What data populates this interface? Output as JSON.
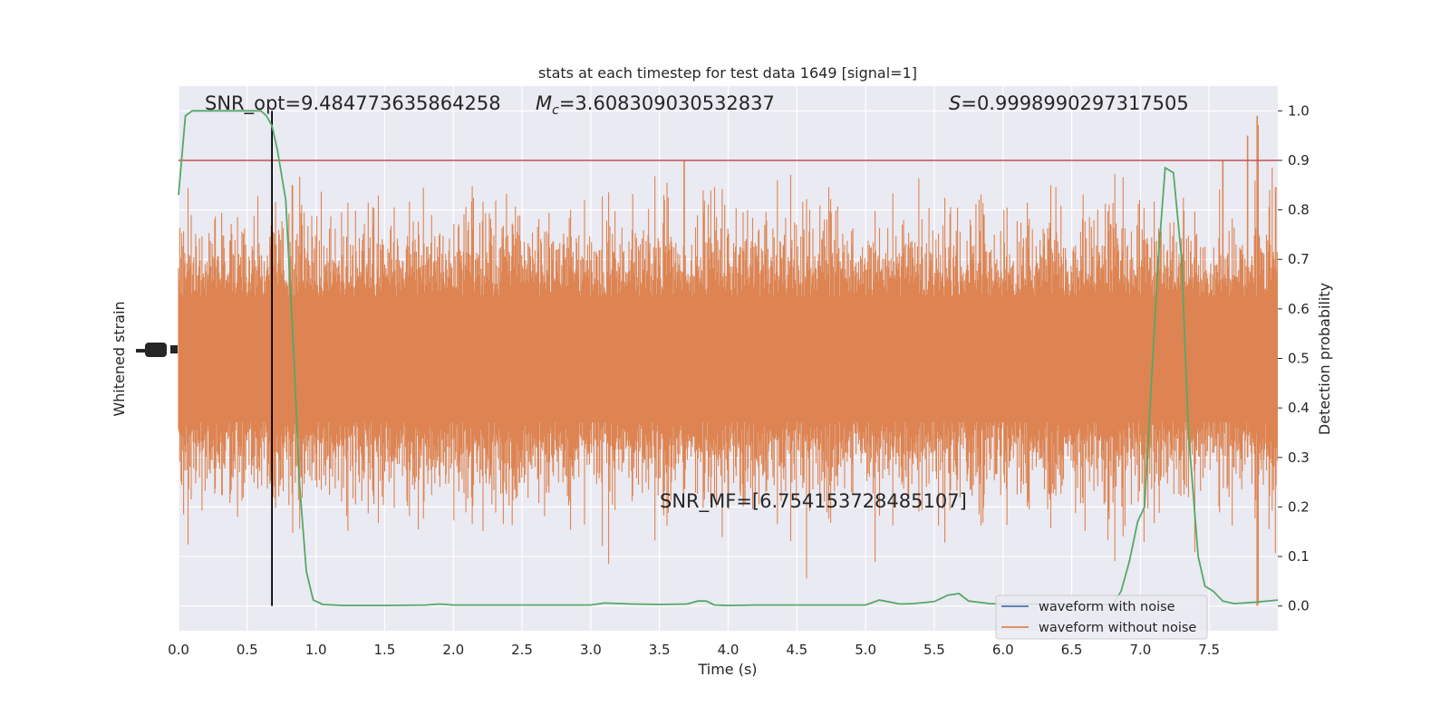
{
  "chart_data": {
    "type": "line",
    "title": "stats at each timestep for test data 1649 [signal=1]",
    "xlabel": "Time (s)",
    "ylabel_left": "Whitened strain",
    "ylabel_right": "Detection probability",
    "xlim": [
      0.0,
      8.0
    ],
    "ylim_right": [
      -0.05,
      1.05
    ],
    "x_ticks": [
      "0.0",
      "0.5",
      "1.0",
      "1.5",
      "2.0",
      "2.5",
      "3.0",
      "3.5",
      "4.0",
      "4.5",
      "5.0",
      "5.5",
      "6.0",
      "6.5",
      "7.0",
      "7.5"
    ],
    "x_tick_values": [
      0.0,
      0.5,
      1.0,
      1.5,
      2.0,
      2.5,
      3.0,
      3.5,
      4.0,
      4.5,
      5.0,
      5.5,
      6.0,
      6.5,
      7.0,
      7.5
    ],
    "y_ticks_right": [
      "0.0",
      "0.1",
      "0.2",
      "0.3",
      "0.4",
      "0.5",
      "0.6",
      "0.7",
      "0.8",
      "0.9",
      "1.0"
    ],
    "y_tick_values_right": [
      0.0,
      0.1,
      0.2,
      0.3,
      0.4,
      0.5,
      0.6,
      0.7,
      0.8,
      0.9,
      1.0
    ],
    "grid": true,
    "legend_position": "bottom-right",
    "annotations": {
      "snr_opt": "SNR_opt=9.484773635864258",
      "mc_symbol": "M",
      "mc_sub": "c",
      "mc_value": "=3.608309030532837",
      "s_symbol": "S",
      "s_value": "=0.9998990297317505",
      "snr_mf": "SNR_MF=[6.754153728485107]"
    },
    "threshold": 0.9,
    "vertical_marker_x": 0.68,
    "series": [
      {
        "name": "waveform with noise",
        "color": "#4c72b0",
        "kind": "strain",
        "values": []
      },
      {
        "name": "waveform without noise",
        "color": "#dd8452",
        "kind": "strain-noise",
        "values": []
      },
      {
        "color": "#55a868",
        "kind": "probability",
        "x": [
          0.0,
          0.05,
          0.1,
          0.15,
          0.2,
          0.3,
          0.4,
          0.5,
          0.6,
          0.64,
          0.68,
          0.72,
          0.78,
          0.84,
          0.88,
          0.93,
          0.98,
          1.05,
          1.2,
          1.5,
          1.8,
          1.9,
          2.0,
          2.3,
          2.6,
          3.0,
          3.1,
          3.3,
          3.5,
          3.7,
          3.78,
          3.84,
          3.9,
          4.0,
          4.2,
          4.5,
          4.8,
          5.0,
          5.1,
          5.25,
          5.35,
          5.5,
          5.6,
          5.68,
          5.75,
          5.9,
          6.0,
          6.3,
          6.6,
          6.8,
          6.86,
          6.92,
          6.98,
          7.03,
          7.08,
          7.13,
          7.18,
          7.24,
          7.3,
          7.35,
          7.42,
          7.47,
          7.53,
          7.6,
          7.68,
          7.75,
          7.85,
          8.0
        ],
        "values": [
          0.83,
          0.99,
          1.0,
          1.0,
          1.0,
          1.0,
          1.0,
          1.0,
          1.0,
          0.99,
          0.97,
          0.92,
          0.82,
          0.5,
          0.25,
          0.07,
          0.012,
          0.003,
          0.001,
          0.001,
          0.002,
          0.004,
          0.002,
          0.002,
          0.002,
          0.002,
          0.006,
          0.004,
          0.003,
          0.004,
          0.01,
          0.01,
          0.002,
          0.001,
          0.002,
          0.002,
          0.002,
          0.002,
          0.012,
          0.004,
          0.005,
          0.009,
          0.022,
          0.025,
          0.01,
          0.005,
          0.004,
          0.004,
          0.003,
          0.003,
          0.03,
          0.09,
          0.17,
          0.2,
          0.45,
          0.7,
          0.885,
          0.875,
          0.7,
          0.35,
          0.1,
          0.04,
          0.03,
          0.01,
          0.005,
          0.006,
          0.008,
          0.012
        ]
      },
      {
        "color": "#c44e52",
        "kind": "threshold",
        "values": [
          0.9
        ]
      }
    ]
  }
}
